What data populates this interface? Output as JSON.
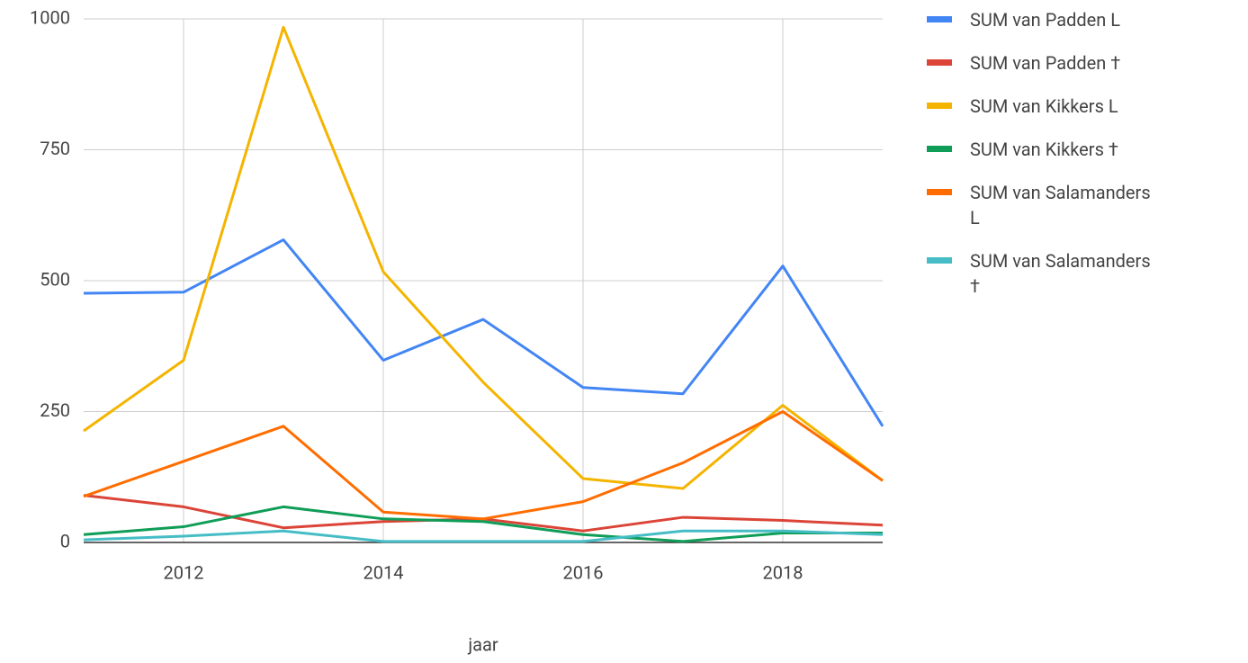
{
  "chart_data": {
    "type": "line",
    "x": [
      2011,
      2012,
      2013,
      2014,
      2015,
      2016,
      2017,
      2018,
      2019
    ],
    "xlim": [
      2011,
      2019
    ],
    "xticks": [
      2012,
      2014,
      2016,
      2018
    ],
    "ylim": [
      0,
      1000
    ],
    "yticks": [
      0,
      250,
      500,
      750,
      1000
    ],
    "x_label": "jaar",
    "grid": true,
    "legend": "right",
    "series": [
      {
        "name": "SUM van Padden L",
        "color": "#4285f4",
        "values": [
          476,
          478,
          578,
          348,
          426,
          296,
          284,
          528,
          222
        ]
      },
      {
        "name": "SUM van Padden †",
        "color": "#db4437",
        "values": [
          90,
          68,
          28,
          40,
          45,
          22,
          48,
          42,
          33
        ]
      },
      {
        "name": "SUM van Kikkers L",
        "color": "#f4b400",
        "values": [
          213,
          348,
          984,
          517,
          306,
          122,
          103,
          262,
          118
        ]
      },
      {
        "name": "SUM van Kikkers †",
        "color": "#0f9d58",
        "values": [
          15,
          30,
          68,
          45,
          40,
          15,
          2,
          18,
          18
        ]
      },
      {
        "name": "SUM van Salamanders L",
        "color": "#ff6d00",
        "values": [
          88,
          155,
          222,
          58,
          45,
          78,
          152,
          250,
          118
        ]
      },
      {
        "name": "SUM van Salamanders †",
        "color": "#46bdc6",
        "values": [
          5,
          12,
          22,
          2,
          2,
          2,
          22,
          22,
          15
        ]
      }
    ]
  }
}
